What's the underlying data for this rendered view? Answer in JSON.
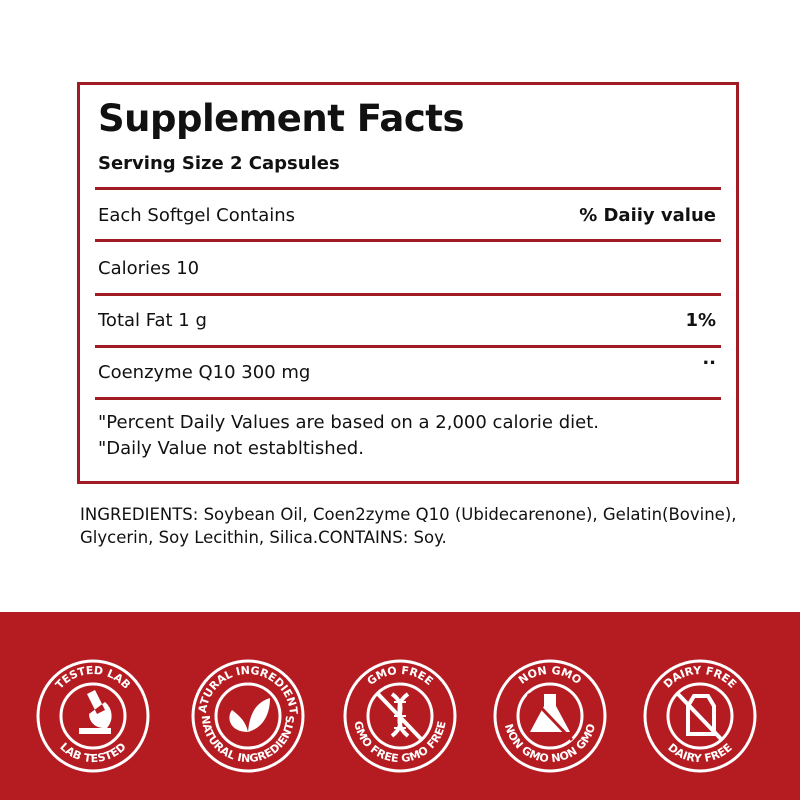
{
  "facts": {
    "title": "Supplement Facts",
    "serving_size": "Serving Size 2 Capsules",
    "header_left": "Each Softgel Contains",
    "header_right": "% Daiiy value",
    "rows": [
      {
        "label": "Calories 10",
        "value": ""
      },
      {
        "label": "Total Fat 1 g",
        "value": "1%"
      },
      {
        "label": "Coenzyme Q10 300 mg",
        "value": ".."
      }
    ],
    "notes": [
      "\"Percent Daily Values are based on a 2,000 calorie diet.",
      "\"Daily Value not establtished."
    ]
  },
  "ingredients": "INGREDIENTS: Soybean Oil, Coen2zyme Q10 (Ubidecarenone), Gelatin(Bovine), Glycerin, Soy Lecithin, Silica.CONTAINS: Soy.",
  "colors": {
    "accent": "#a11b24",
    "band": "#b51c22"
  },
  "badges": [
    {
      "top": "TESTED   LAB",
      "bottom": "LAB   TESTED",
      "icon": "microscope-icon"
    },
    {
      "top": "NATURAL INGREDIENTS",
      "bottom": "NATURAL INGREDIENTS",
      "icon": "leaf-icon"
    },
    {
      "top": "GMO FREE",
      "bottom": "GMO FREE  GMO FREE",
      "icon": "dna-icon"
    },
    {
      "top": "NON GMO",
      "bottom": "NON GMO  NON GMO",
      "icon": "flask-icon"
    },
    {
      "top": "DAIRY FREE",
      "bottom": "DAIRY FREE",
      "icon": "milk-carton-icon"
    }
  ]
}
